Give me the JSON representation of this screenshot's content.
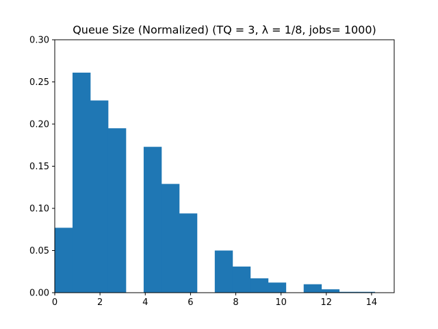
{
  "chart_data": {
    "type": "bar",
    "title": "Queue Size (Normalized) (TQ = 3, λ = 1/8, jobs= 1000)",
    "xlabel": "",
    "ylabel": "",
    "xlim": [
      0,
      15
    ],
    "ylim": [
      0,
      0.3
    ],
    "grid": false,
    "bar_color": "#1f77b4",
    "bin_edges": [
      0,
      0.7857,
      1.5714,
      2.3571,
      3.1429,
      3.9286,
      4.7143,
      5.5,
      6.2857,
      7.0714,
      7.8571,
      8.6429,
      9.4286,
      10.2143,
      11.0,
      11.7857,
      12.5714,
      13.3571,
      14.1429
    ],
    "values": [
      0.077,
      0.261,
      0.228,
      0.195,
      0.0,
      0.173,
      0.129,
      0.094,
      0.0,
      0.05,
      0.031,
      0.017,
      0.012,
      0.0,
      0.01,
      0.004,
      0.001,
      0.001
    ],
    "xticks": [
      0,
      2,
      4,
      6,
      8,
      10,
      12,
      14
    ],
    "xtick_labels": [
      "0",
      "2",
      "4",
      "6",
      "8",
      "10",
      "12",
      "14"
    ],
    "yticks": [
      0.0,
      0.05,
      0.1,
      0.15,
      0.2,
      0.25,
      0.3
    ],
    "ytick_labels": [
      "0.00",
      "0.05",
      "0.10",
      "0.15",
      "0.20",
      "0.25",
      "0.30"
    ]
  }
}
